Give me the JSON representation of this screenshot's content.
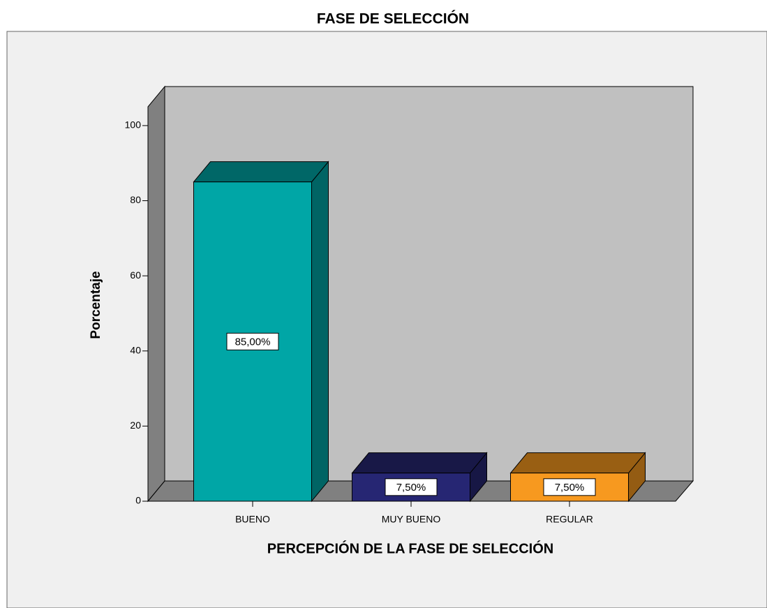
{
  "chart_data": {
    "type": "bar3d",
    "title": "FASE DE SELECCIÓN",
    "x_label": "PERCEPCIÓN DE LA FASE DE SELECCIÓN",
    "y_label": "Porcentaje",
    "categories": [
      "BUENO",
      "MUY BUENO",
      "REGULAR"
    ],
    "values": [
      85,
      7.5,
      7.5
    ],
    "value_labels": [
      "85,00%",
      "7,50%",
      "7,50%"
    ],
    "colors": [
      "#00a6a6",
      "#262673",
      "#f7991f"
    ],
    "ylim": [
      0,
      105
    ],
    "yticks": [
      0,
      20,
      40,
      60,
      80,
      100
    ]
  }
}
